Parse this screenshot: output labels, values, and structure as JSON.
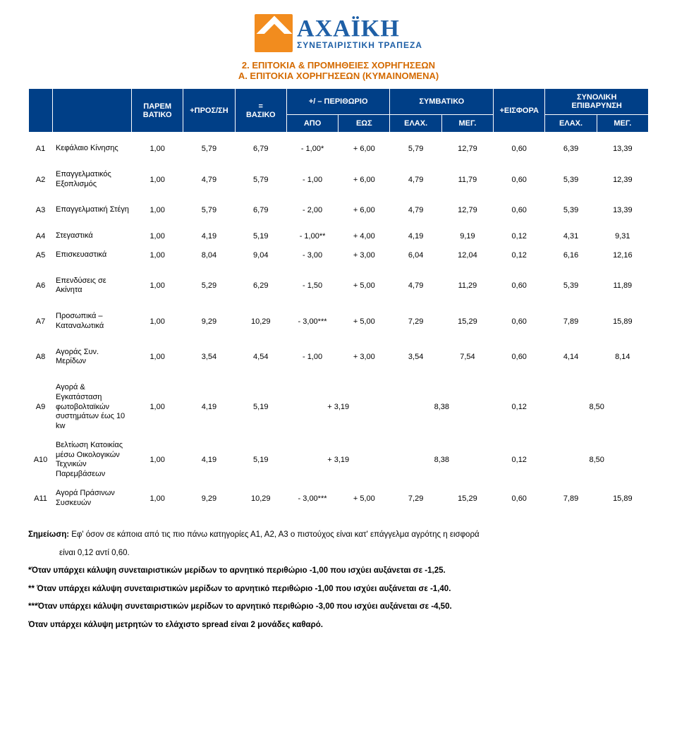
{
  "logo": {
    "main": "ΑΧΑΪΚΗ",
    "sub": "ΣΥΝΕΤΑΙΡΙΣΤΙΚΗ ΤΡΑΠΕΖΑ",
    "mark_bg": "#f28c1e",
    "text_color": "#1e5fa6"
  },
  "titles": {
    "line1": "2. ΕΠΙΤΟΚΙΑ & ΠΡΟΜΗΘΕΙΕΣ ΧΟΡΗΓΗΣΕΩΝ",
    "line2": "Α. ΕΠΙΤΟΚΙΑ ΧΟΡΗΓΗΣΕΩΝ (ΚΥΜΑΙΝΟΜΕΝΑ)",
    "color": "#d46a00"
  },
  "header": {
    "bg": "#003f87",
    "fg": "#ffffff",
    "parem": "ΠΑΡΕΜ\nΒΑΤΙΚΟ",
    "pros": "+ΠΡΟΣ/ΣΗ",
    "basiko": "=\nΒΑΣΙΚΟ",
    "perithorio": "+/ – ΠΕΡΙΘΩΡΙΟ",
    "symbatiko": "ΣΥΜΒΑΤΙΚΟ",
    "eisfora": "+ΕΙΣΦΟΡΑ",
    "synoliki": "ΣΥΝΟΛΙΚΗ\nΕΠΙΒΑΡΥΝΣΗ",
    "apo": "ΑΠΟ",
    "eos": "ΕΩΣ",
    "elax": "ΕΛΑΧ.",
    "meg": "ΜΕΓ."
  },
  "col_widths": {
    "id": "34px",
    "label": "110px",
    "num": "auto"
  },
  "rows": [
    {
      "id": "Α1",
      "label": "Κεφάλαιο Κίνησης",
      "c": [
        "1,00",
        "5,79",
        "6,79",
        "- 1,00*",
        "+ 6,00",
        "5,79",
        "12,79",
        "0,60",
        "6,39",
        "13,39"
      ]
    },
    {
      "id": "Α2",
      "label": "Επαγγελματικός Εξοπλισμός",
      "c": [
        "1,00",
        "4,79",
        "5,79",
        "- 1,00",
        "+ 6,00",
        "4,79",
        "11,79",
        "0,60",
        "5,39",
        "12,39"
      ]
    },
    {
      "id": "Α3",
      "label": "Επαγγελματική Στέγη",
      "c": [
        "1,00",
        "5,79",
        "6,79",
        "- 2,00",
        "+ 6,00",
        "4,79",
        "12,79",
        "0,60",
        "5,39",
        "13,39"
      ]
    },
    {
      "id": "Α4",
      "label": "Στεγαστικά",
      "c": [
        "1,00",
        "4,19",
        "5,19",
        "- 1,00**",
        "+ 4,00",
        "4,19",
        "9,19",
        "0,12",
        "4,31",
        "9,31"
      ]
    },
    {
      "id": "Α5",
      "label": "Επισκευαστικά",
      "c": [
        "1,00",
        "8,04",
        "9,04",
        "- 3,00",
        "+ 3,00",
        "6,04",
        "12,04",
        "0,12",
        "6,16",
        "12,16"
      ]
    },
    {
      "id": "Α6",
      "label": "Επενδύσεις σε Ακίνητα",
      "c": [
        "1,00",
        "5,29",
        "6,29",
        "- 1,50",
        "+ 5,00",
        "4,79",
        "11,29",
        "0,60",
        "5,39",
        "11,89"
      ]
    },
    {
      "id": "Α7",
      "label": "Προσωπικά – Καταναλωτικά",
      "c": [
        "1,00",
        "9,29",
        "10,29",
        "- 3,00***",
        "+ 5,00",
        "7,29",
        "15,29",
        "0,60",
        "7,89",
        "15,89"
      ]
    },
    {
      "id": "Α8",
      "label": "Αγοράς Συν. Μερίδων",
      "c": [
        "1,00",
        "3,54",
        "4,54",
        "- 1,00",
        "+ 3,00",
        "3,54",
        "7,54",
        "0,60",
        "4,14",
        "8,14"
      ]
    }
  ],
  "rows_merged": [
    {
      "id": "Α9",
      "label": "Αγορά & Εγκατάσταση φωτοβολταϊκών συστημάτων έως 10 kw",
      "parem": "1,00",
      "pros": "4,19",
      "bas": "5,19",
      "per": "+ 3,19",
      "symb": "8,38",
      "eisf": "0,12",
      "syn": "8,50"
    },
    {
      "id": "Α10",
      "label": "Βελτίωση Κατοικίας μέσω Οικολογικών Τεχνικών Παρεμβάσεων",
      "parem": "1,00",
      "pros": "4,19",
      "bas": "5,19",
      "per": "+ 3,19",
      "symb": "8,38",
      "eisf": "0,12",
      "syn": "8,50"
    }
  ],
  "row_a11": {
    "id": "Α11",
    "label": "Αγορά Πράσινων Συσκευών",
    "c": [
      "1,00",
      "9,29",
      "10,29",
      "- 3,00***",
      "+ 5,00",
      "7,29",
      "15,29",
      "0,60",
      "7,89",
      "15,89"
    ]
  },
  "notes": {
    "p1a": "Σημείωση:",
    "p1b": " Εφ' όσον σε κάποια από τις πιο πάνω κατηγορίες Α1, Α2, Α3 ο πιστούχος είναι κατ' επάγγελμα αγρότης η εισφορά",
    "p1c": "είναι 0,12 αντί 0,60.",
    "p2": "*Όταν υπάρχει κάλυψη συνεταιριστικών μερίδων το αρνητικό περιθώριο -1,00 που ισχύει αυξάνεται σε -1,25.",
    "p3": "** Όταν υπάρχει κάλυψη συνεταιριστικών μερίδων το αρνητικό περιθώριο -1,00 που ισχύει αυξάνεται σε -1,40.",
    "p4": "***Όταν υπάρχει κάλυψη συνεταιριστικών μερίδων το αρνητικό περιθώριο -3,00 που ισχύει αυξάνεται σε -4,50.",
    "p5": "Όταν υπάρχει κάλυψη μετρητών το ελάχιστο spread είναι 2 μονάδες καθαρό."
  }
}
